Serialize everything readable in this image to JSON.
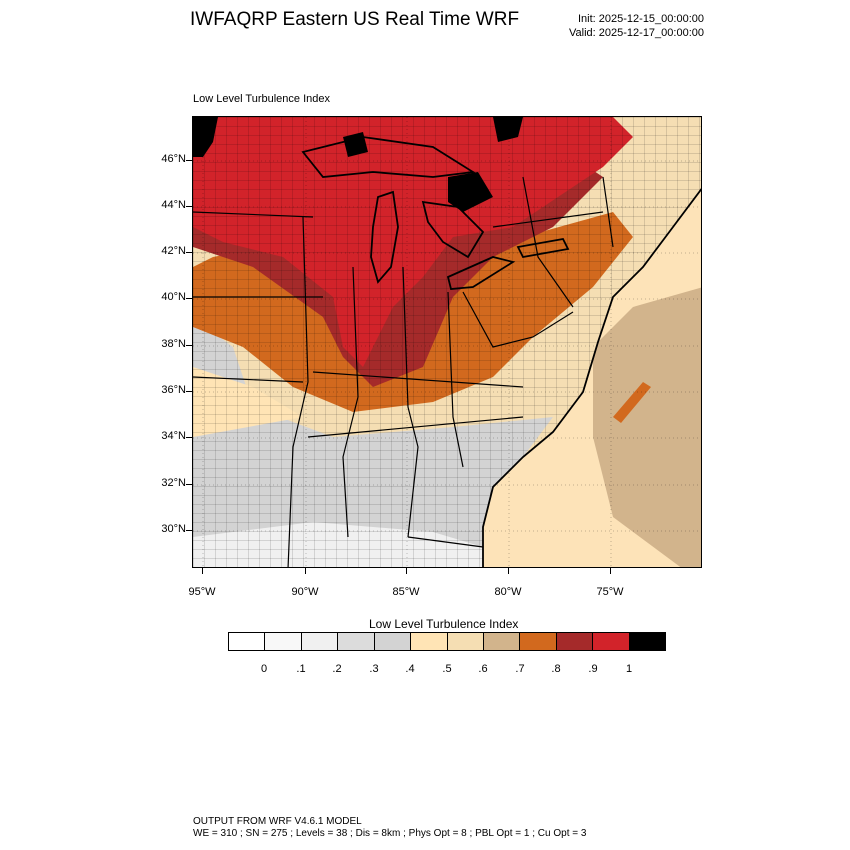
{
  "header": {
    "title": "IWFAQRP Eastern US Real Time WRF",
    "init": "Init: 2025-12-15_00:00:00",
    "valid": "Valid: 2025-12-17_00:00:00"
  },
  "map": {
    "field_title": "Low Level Turbulence Index",
    "lat_labels": [
      "46°N",
      "44°N",
      "42°N",
      "40°N",
      "38°N",
      "36°N",
      "34°N",
      "32°N",
      "30°N"
    ],
    "lon_labels": [
      "95°W",
      "90°W",
      "85°W",
      "80°W",
      "75°W"
    ],
    "colors": {
      "black": "#000000",
      "red": "#d2232a",
      "dark_red": "#a52a2a",
      "orange": "#d2691e",
      "tan": "#d2b48c",
      "wheat": "#f5deb3",
      "moccasin": "#ffe4b5",
      "light_gray": "#d3d3d3",
      "gainsboro": "#dcdcdc",
      "whitesmoke": "#f0f0f0",
      "white": "#ffffff"
    }
  },
  "colorbar": {
    "title": "Low Level Turbulence Index",
    "colors": [
      "#ffffff",
      "#f8f8f8",
      "#f0f0f0",
      "#dcdcdc",
      "#d3d3d3",
      "#ffe4b5",
      "#f5deb3",
      "#d2b48c",
      "#d2691e",
      "#a52a2a",
      "#d2232a",
      "#000000"
    ],
    "labels": [
      "0",
      ".1",
      ".2",
      ".3",
      ".4",
      ".5",
      ".6",
      ".7",
      ".8",
      ".9",
      "1"
    ]
  },
  "footer": {
    "line1": "OUTPUT FROM WRF V4.6.1 MODEL",
    "line2": "WE = 310 ; SN = 275 ; Levels = 38 ; Dis = 8km ; Phys Opt = 8 ; PBL Opt = 1 ; Cu Opt = 3"
  }
}
